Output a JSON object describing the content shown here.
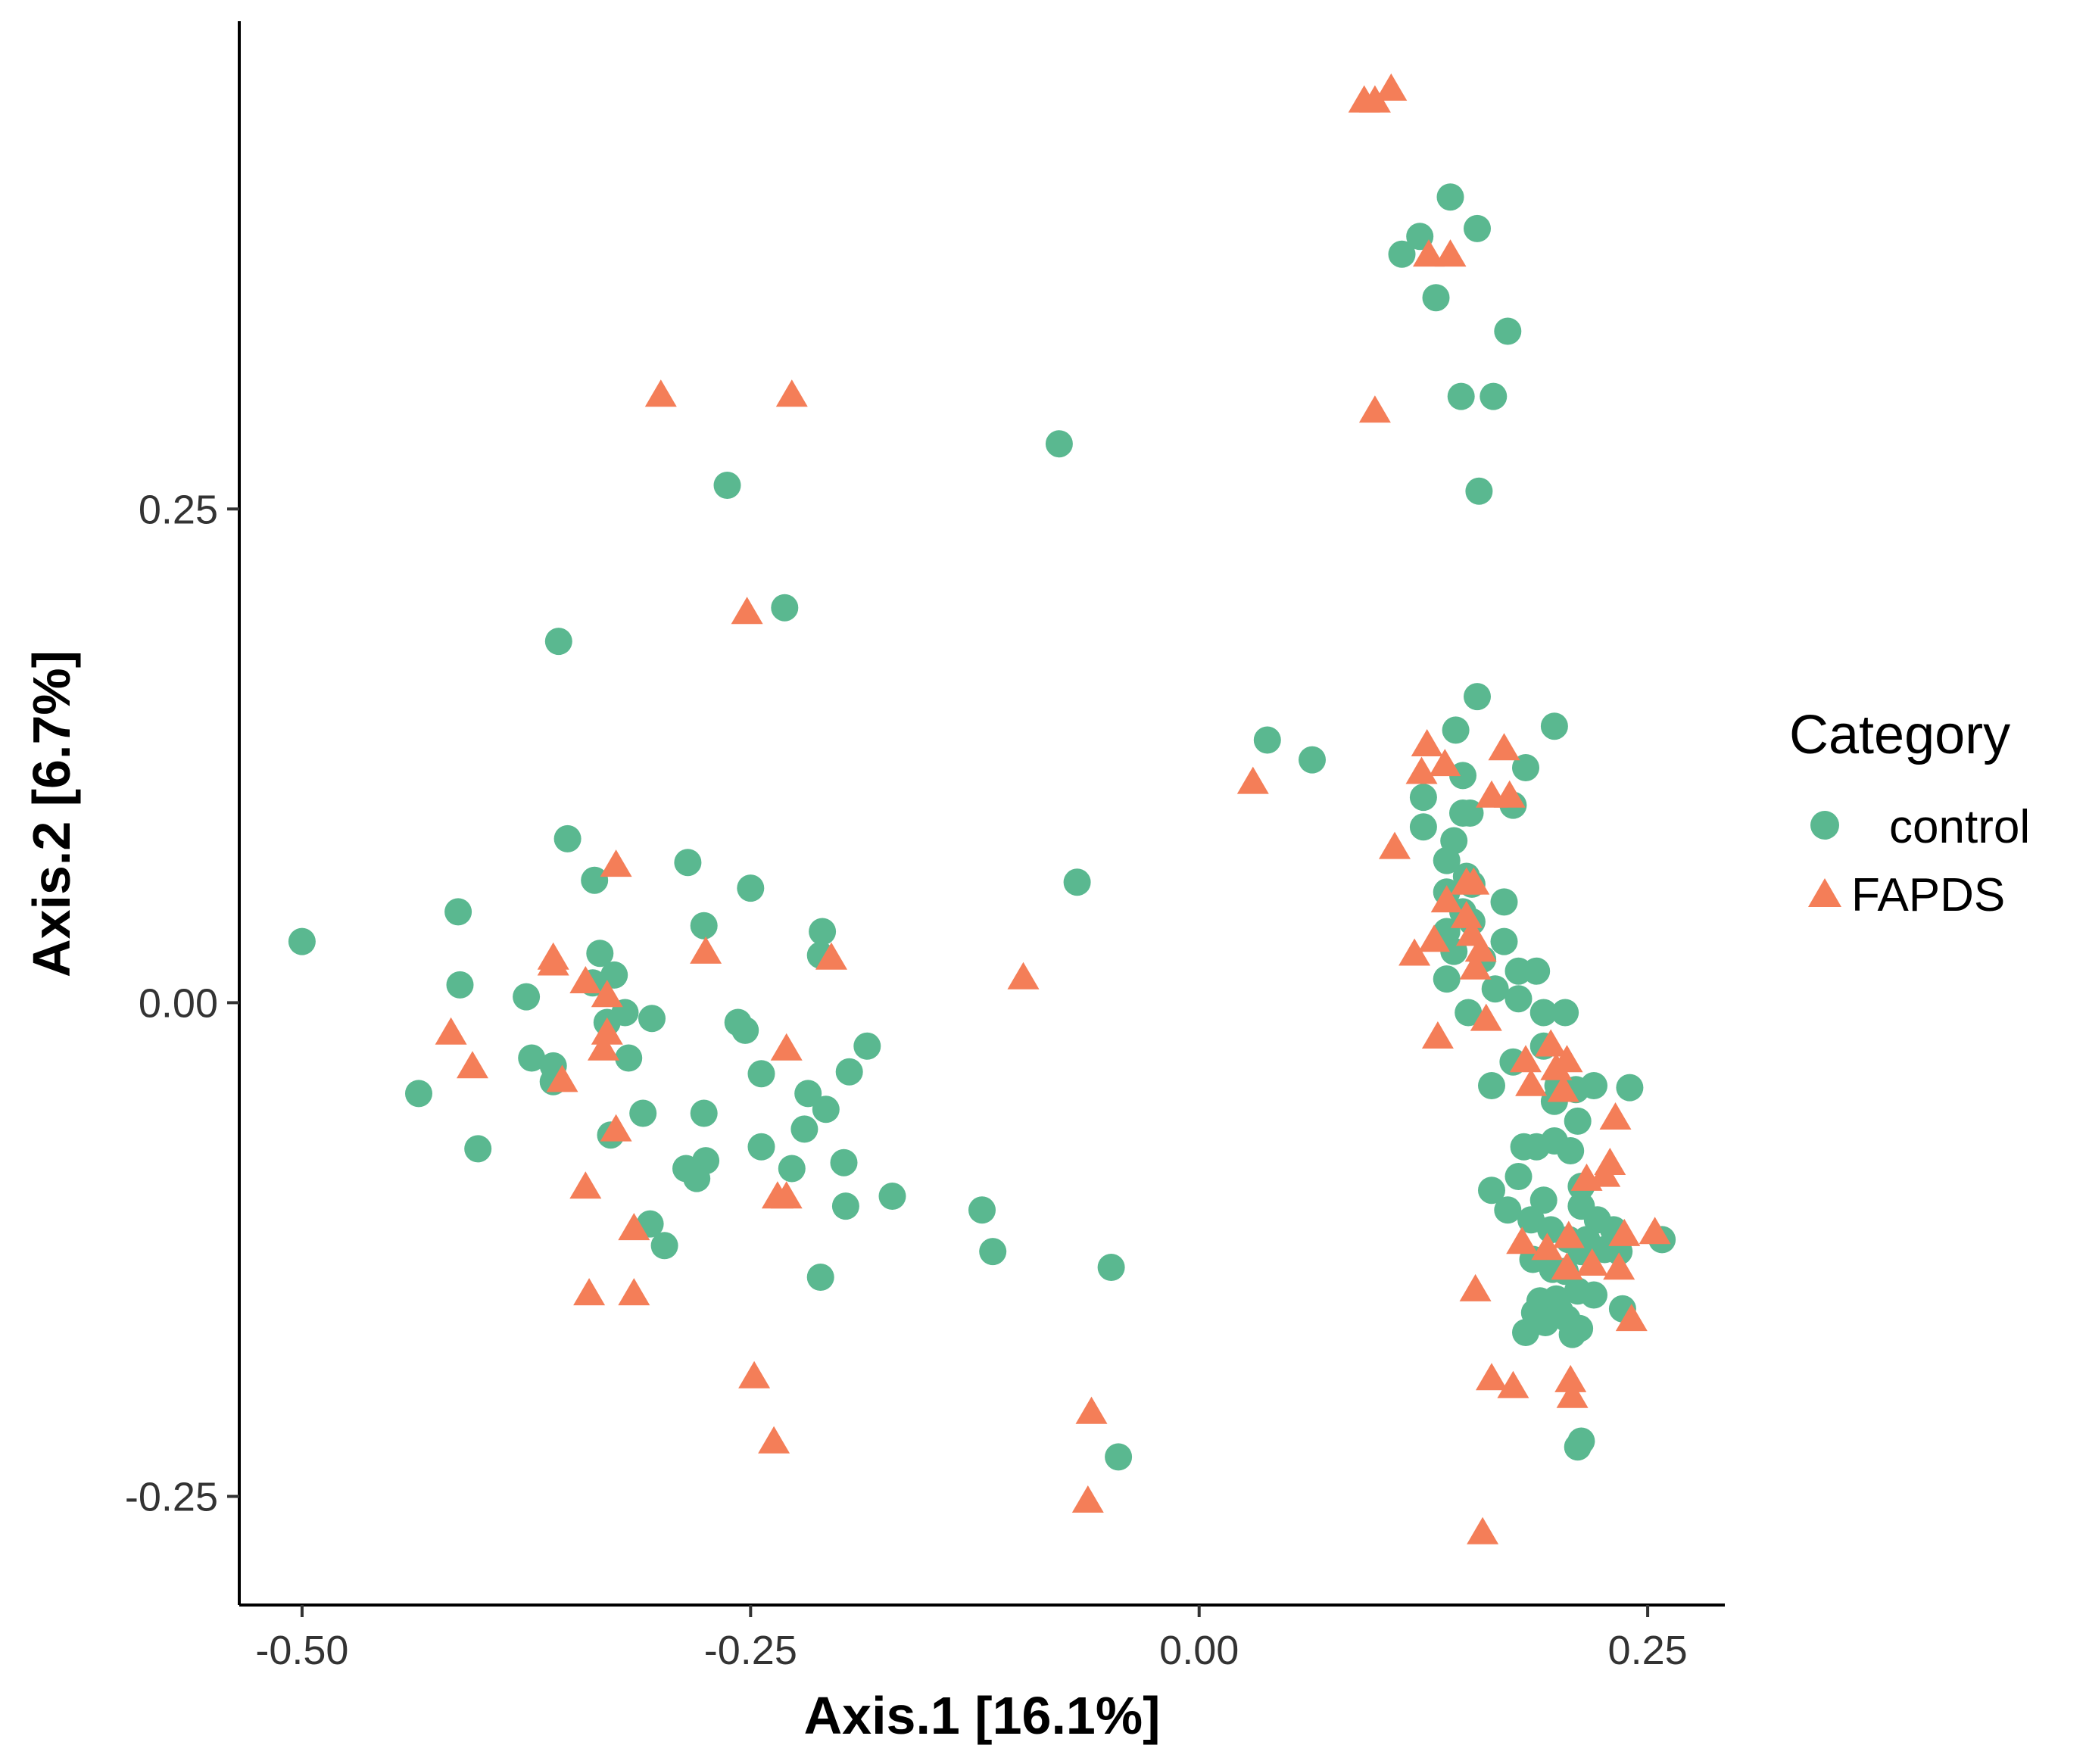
{
  "chart_data": {
    "type": "scatter",
    "title": "",
    "xlabel": "Axis.1   [16.1%]",
    "ylabel": "Axis.2   [6.7%]",
    "xlim": [
      -0.535,
      0.293
    ],
    "ylim": [
      -0.305,
      0.497
    ],
    "xticks": [
      -0.5,
      -0.25,
      0.0,
      0.25
    ],
    "xtick_labels": [
      "-0.50",
      "-0.25",
      "0.00",
      "0.25"
    ],
    "yticks": [
      -0.25,
      0.0,
      0.25
    ],
    "ytick_labels": [
      "-0.25",
      "0.00",
      "0.25"
    ],
    "grid": false,
    "legend": {
      "title": "Category",
      "position": "right"
    },
    "series": [
      {
        "name": "control",
        "marker": "circle",
        "color": "#5ab890",
        "points": [
          [
            0.14,
            0.408
          ],
          [
            0.155,
            0.392
          ],
          [
            0.123,
            0.388
          ],
          [
            0.113,
            0.379
          ],
          [
            0.132,
            0.357
          ],
          [
            0.172,
            0.34
          ],
          [
            0.146,
            0.307
          ],
          [
            0.164,
            0.307
          ],
          [
            0.156,
            0.259
          ],
          [
            -0.078,
            0.283
          ],
          [
            -0.263,
            0.262
          ],
          [
            -0.231,
            0.2
          ],
          [
            -0.357,
            0.183
          ],
          [
            0.155,
            0.155
          ],
          [
            0.198,
            0.14
          ],
          [
            0.143,
            0.138
          ],
          [
            0.038,
            0.133
          ],
          [
            0.063,
            0.123
          ],
          [
            0.182,
            0.119
          ],
          [
            0.147,
            0.115
          ],
          [
            0.125,
            0.104
          ],
          [
            0.175,
            0.1
          ],
          [
            0.147,
            0.096
          ],
          [
            0.151,
            0.096
          ],
          [
            0.125,
            0.089
          ],
          [
            0.142,
            0.082
          ],
          [
            0.138,
            0.072
          ],
          [
            0.149,
            0.064
          ],
          [
            0.152,
            0.06
          ],
          [
            0.138,
            0.056
          ],
          [
            0.17,
            0.051
          ],
          [
            0.147,
            0.046
          ],
          [
            0.152,
            0.041
          ],
          [
            0.138,
            0.036
          ],
          [
            0.17,
            0.031
          ],
          [
            0.142,
            0.026
          ],
          [
            0.158,
            0.022
          ],
          [
            0.178,
            0.016
          ],
          [
            0.188,
            0.016
          ],
          [
            0.138,
            0.012
          ],
          [
            0.165,
            0.007
          ],
          [
            0.178,
            0.002
          ],
          [
            0.192,
            -0.005
          ],
          [
            0.204,
            -0.005
          ],
          [
            0.15,
            -0.005
          ],
          [
            0.192,
            -0.022
          ],
          [
            0.175,
            -0.03
          ],
          [
            0.2,
            -0.042
          ],
          [
            0.22,
            -0.042
          ],
          [
            0.163,
            -0.042
          ],
          [
            0.21,
            -0.044
          ],
          [
            0.198,
            -0.05
          ],
          [
            0.211,
            -0.06
          ],
          [
            0.198,
            -0.07
          ],
          [
            0.181,
            -0.073
          ],
          [
            0.188,
            -0.073
          ],
          [
            0.207,
            -0.075
          ],
          [
            0.178,
            -0.088
          ],
          [
            0.213,
            -0.093
          ],
          [
            0.163,
            -0.095
          ],
          [
            0.192,
            -0.1
          ],
          [
            0.213,
            -0.103
          ],
          [
            0.172,
            -0.105
          ],
          [
            0.185,
            -0.11
          ],
          [
            0.222,
            -0.11
          ],
          [
            0.196,
            -0.115
          ],
          [
            0.231,
            -0.115
          ],
          [
            0.206,
            -0.12
          ],
          [
            0.216,
            -0.12
          ],
          [
            0.226,
            -0.125
          ],
          [
            0.258,
            -0.12
          ],
          [
            0.197,
            -0.135
          ],
          [
            0.234,
            -0.126
          ],
          [
            0.213,
            -0.126
          ],
          [
            0.186,
            -0.13
          ],
          [
            0.204,
            -0.136
          ],
          [
            0.22,
            -0.148
          ],
          [
            0.19,
            -0.151
          ],
          [
            0.211,
            -0.146
          ],
          [
            0.199,
            -0.15
          ],
          [
            0.201,
            -0.156
          ],
          [
            0.187,
            -0.157
          ],
          [
            0.193,
            -0.162
          ],
          [
            0.205,
            -0.16
          ],
          [
            0.212,
            -0.165
          ],
          [
            0.208,
            -0.168
          ],
          [
            0.236,
            -0.155
          ],
          [
            0.182,
            -0.167
          ],
          [
            0.213,
            -0.222
          ],
          [
            0.211,
            -0.225
          ],
          [
            0.24,
            -0.043
          ],
          [
            -0.068,
            0.061
          ],
          [
            -0.5,
            0.031
          ],
          [
            -0.413,
            0.046
          ],
          [
            -0.352,
            0.083
          ],
          [
            -0.337,
            0.062
          ],
          [
            -0.285,
            0.071
          ],
          [
            -0.25,
            0.058
          ],
          [
            -0.276,
            0.039
          ],
          [
            -0.21,
            0.036
          ],
          [
            -0.211,
            0.024
          ],
          [
            -0.412,
            0.009
          ],
          [
            -0.334,
            0.025
          ],
          [
            -0.326,
            0.014
          ],
          [
            -0.338,
            0.01
          ],
          [
            -0.375,
            0.003
          ],
          [
            -0.32,
            -0.005
          ],
          [
            -0.33,
            -0.01
          ],
          [
            -0.305,
            -0.008
          ],
          [
            -0.257,
            -0.01
          ],
          [
            -0.253,
            -0.014
          ],
          [
            -0.185,
            -0.022
          ],
          [
            -0.372,
            -0.028
          ],
          [
            -0.318,
            -0.028
          ],
          [
            -0.36,
            -0.032
          ],
          [
            -0.244,
            -0.036
          ],
          [
            -0.195,
            -0.035
          ],
          [
            -0.435,
            -0.046
          ],
          [
            -0.218,
            -0.046
          ],
          [
            -0.36,
            -0.04
          ],
          [
            -0.208,
            -0.054
          ],
          [
            -0.31,
            -0.056
          ],
          [
            -0.276,
            -0.056
          ],
          [
            -0.328,
            -0.067
          ],
          [
            -0.22,
            -0.064
          ],
          [
            -0.402,
            -0.074
          ],
          [
            -0.244,
            -0.073
          ],
          [
            -0.275,
            -0.08
          ],
          [
            -0.198,
            -0.081
          ],
          [
            -0.286,
            -0.084
          ],
          [
            -0.227,
            -0.084
          ],
          [
            -0.28,
            -0.089
          ],
          [
            -0.171,
            -0.098
          ],
          [
            -0.197,
            -0.103
          ],
          [
            -0.121,
            -0.105
          ],
          [
            -0.306,
            -0.112
          ],
          [
            -0.298,
            -0.123
          ],
          [
            -0.115,
            -0.126
          ],
          [
            -0.049,
            -0.134
          ],
          [
            -0.211,
            -0.139
          ],
          [
            -0.045,
            -0.23
          ]
        ]
      },
      {
        "name": "FAPDS",
        "marker": "triangle",
        "color": "#f47e58",
        "points": [
          [
            0.107,
            0.462
          ],
          [
            0.092,
            0.456
          ],
          [
            0.098,
            0.456
          ],
          [
            0.128,
            0.378
          ],
          [
            0.14,
            0.378
          ],
          [
            0.098,
            0.299
          ],
          [
            -0.3,
            0.307
          ],
          [
            -0.227,
            0.307
          ],
          [
            -0.252,
            0.197
          ],
          [
            0.03,
            0.111
          ],
          [
            0.127,
            0.13
          ],
          [
            0.17,
            0.128
          ],
          [
            0.137,
            0.12
          ],
          [
            0.124,
            0.116
          ],
          [
            0.173,
            0.104
          ],
          [
            0.163,
            0.104
          ],
          [
            0.109,
            0.078
          ],
          [
            0.149,
            0.06
          ],
          [
            0.153,
            0.06
          ],
          [
            0.138,
            0.051
          ],
          [
            0.149,
            0.043
          ],
          [
            0.12,
            0.024
          ],
          [
            0.131,
            0.031
          ],
          [
            0.152,
            0.034
          ],
          [
            0.157,
            0.026
          ],
          [
            0.154,
            0.017
          ],
          [
            0.133,
            -0.018
          ],
          [
            0.16,
            -0.009
          ],
          [
            0.196,
            -0.022
          ],
          [
            0.182,
            -0.03
          ],
          [
            0.205,
            -0.03
          ],
          [
            0.199,
            -0.034
          ],
          [
            0.185,
            -0.042
          ],
          [
            0.203,
            -0.045
          ],
          [
            0.232,
            -0.059
          ],
          [
            0.229,
            -0.082
          ],
          [
            0.226,
            -0.088
          ],
          [
            0.216,
            -0.09
          ],
          [
            0.237,
            -0.118
          ],
          [
            0.206,
            -0.119
          ],
          [
            0.254,
            -0.117
          ],
          [
            0.194,
            -0.125
          ],
          [
            0.18,
            -0.122
          ],
          [
            0.219,
            -0.133
          ],
          [
            0.205,
            -0.135
          ],
          [
            0.234,
            -0.135
          ],
          [
            0.241,
            -0.161
          ],
          [
            0.154,
            -0.146
          ],
          [
            0.163,
            -0.191
          ],
          [
            0.175,
            -0.195
          ],
          [
            0.207,
            -0.192
          ],
          [
            0.208,
            -0.2
          ],
          [
            0.158,
            -0.269
          ],
          [
            -0.325,
            0.069
          ],
          [
            -0.36,
            0.022
          ],
          [
            -0.36,
            0.019
          ],
          [
            -0.275,
            0.025
          ],
          [
            -0.205,
            0.022
          ],
          [
            -0.098,
            0.012
          ],
          [
            -0.342,
            0.01
          ],
          [
            -0.33,
            0.003
          ],
          [
            -0.417,
            -0.016
          ],
          [
            -0.33,
            -0.016
          ],
          [
            -0.332,
            -0.024
          ],
          [
            -0.23,
            -0.024
          ],
          [
            -0.405,
            -0.033
          ],
          [
            -0.355,
            -0.04
          ],
          [
            -0.325,
            -0.065
          ],
          [
            -0.342,
            -0.094
          ],
          [
            -0.235,
            -0.099
          ],
          [
            -0.23,
            -0.099
          ],
          [
            -0.315,
            -0.115
          ],
          [
            -0.34,
            -0.148
          ],
          [
            -0.315,
            -0.148
          ],
          [
            -0.248,
            -0.19
          ],
          [
            -0.237,
            -0.223
          ],
          [
            -0.06,
            -0.208
          ],
          [
            -0.062,
            -0.253
          ]
        ]
      }
    ]
  }
}
